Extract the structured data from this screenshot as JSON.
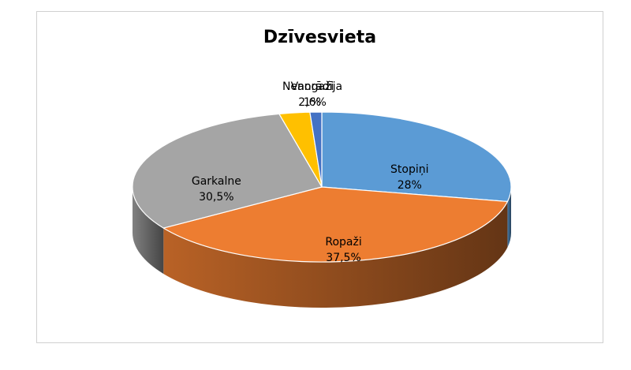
{
  "chart_data": {
    "type": "pie",
    "title": "Dzīvesvieta",
    "slices": [
      {
        "label": "Stopiņi",
        "value": 28,
        "value_text": "28%",
        "color": "#5B9BD5"
      },
      {
        "label": "Ropaži",
        "value": 37.5,
        "value_text": "37,5%",
        "color": "#ED7D31"
      },
      {
        "label": "Garkalne",
        "value": 30.5,
        "value_text": "30,5%",
        "color": "#A5A5A5"
      },
      {
        "label": "Vangaži",
        "value": 2.6,
        "value_text": "2,6%",
        "color": "#FFC000"
      },
      {
        "label": "Nenorādīja",
        "value": 1,
        "value_text": "1%",
        "color": "#4472C4"
      }
    ],
    "style": "3d",
    "legend": "none"
  }
}
